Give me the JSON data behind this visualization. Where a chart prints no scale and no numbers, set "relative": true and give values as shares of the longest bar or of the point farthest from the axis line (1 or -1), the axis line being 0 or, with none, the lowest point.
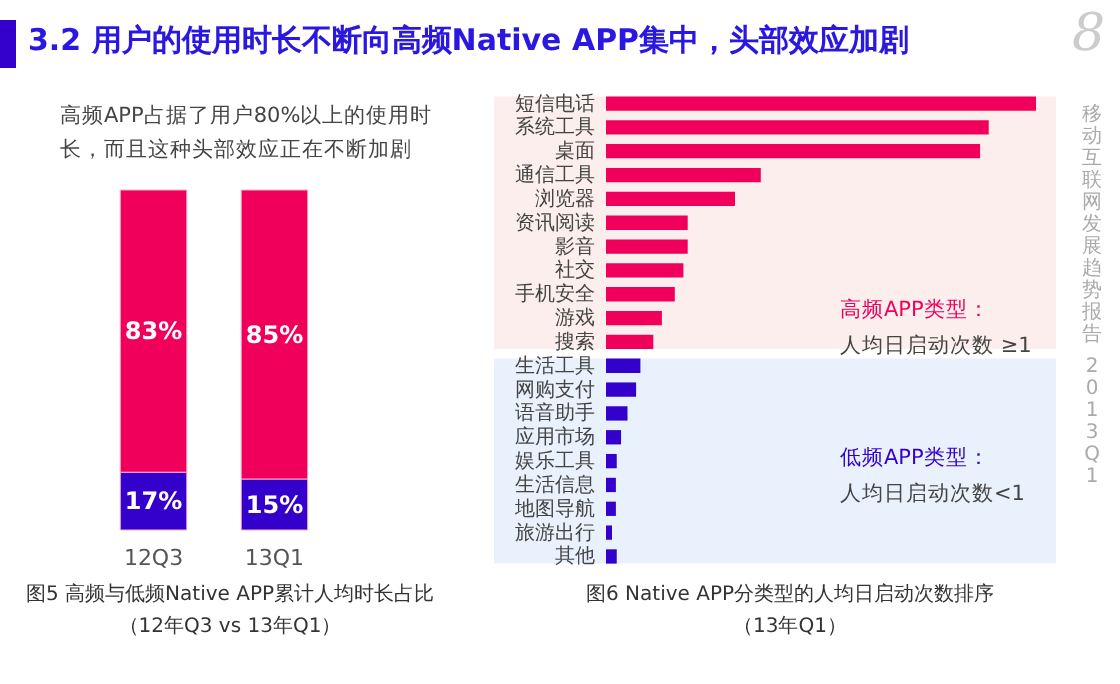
{
  "chart_data": [
    {
      "type": "bar",
      "stacked": true,
      "tick_labels": "x",
      "title": "3.2 用户的使用时长不断向高频Native APP集中，头部效应加剧",
      "subtitle": "高频APP占据了用户80%以上的使用时长，而且这种头部效应正在不断加剧",
      "categories": [
        "12Q3",
        "13Q1"
      ],
      "series": [
        {
          "color": "#3300cc",
          "values": [
            17,
            15
          ],
          "value_labels": [
            "17%",
            "15%"
          ]
        },
        {
          "color": "#f0005a",
          "values": [
            83,
            85
          ],
          "value_labels": [
            "83%",
            "85%"
          ]
        }
      ],
      "annotations": [
        "图5 高频与低频Native APP累计人均时长占比",
        "（12年Q3 vs 13年Q1）"
      ]
    },
    {
      "type": "bar",
      "orientation": "horizontal",
      "relative": true,
      "categories": [
        "短信电话",
        "系统工具",
        "桌面",
        "通信工具",
        "浏览器",
        "资讯阅读",
        "影音",
        "社交",
        "手机安全",
        "游戏",
        "搜索",
        "生活工具",
        "网购支付",
        "语音助手",
        "应用市场",
        "娱乐工具",
        "生活信息",
        "地图导航",
        "旅游出行",
        "其他"
      ],
      "values": [
        1,
        0.89,
        0.87,
        0.36,
        0.3,
        0.19,
        0.19,
        0.18,
        0.16,
        0.13,
        0.11,
        0.08,
        0.07,
        0.05,
        0.035,
        0.025,
        0.023,
        0.023,
        0.014,
        0.025
      ],
      "colors": [
        "#f0005a",
        "#f0005a",
        "#f0005a",
        "#f0005a",
        "#f0005a",
        "#f0005a",
        "#f0005a",
        "#f0005a",
        "#f0005a",
        "#f0005a",
        "#f0005a",
        "#3300cc",
        "#3300cc",
        "#3300cc",
        "#3300cc",
        "#3300cc",
        "#3300cc",
        "#3300cc",
        "#3300cc",
        "#3300cc"
      ],
      "bands": [
        {
          "axis": "y",
          "from": "短信电话",
          "to": "搜索",
          "label": "高频APP类型：",
          "color": "#fdeeee"
        },
        {
          "axis": "y",
          "from": "生活工具",
          "to": "其他",
          "label": "低频APP类型：",
          "color": "#e8f1fc"
        }
      ],
      "annotations": [
        "人均日启动次数 ≥1",
        "人均日启动次数<1",
        "图6 Native APP分类型的人均日启动次数排序",
        "（13年Q1）",
        "移动互联网发展趋势报告 2013Q1",
        "8"
      ]
    }
  ]
}
